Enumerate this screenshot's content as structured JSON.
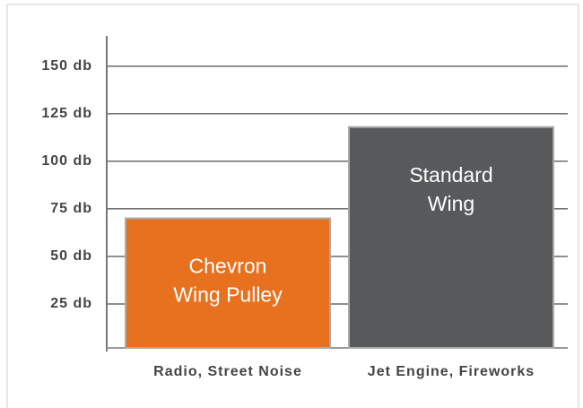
{
  "chart_data": {
    "type": "bar",
    "categories": [
      "Radio, Street Noise",
      "Jet Engine, Fireworks"
    ],
    "values": [
      70,
      118
    ],
    "bar_labels": [
      [
        "Chevron",
        "Wing Pulley"
      ],
      [
        "Standard",
        "Wing"
      ]
    ],
    "colors": [
      "#e8711f",
      "#58595b"
    ],
    "ylim": [
      0,
      165
    ],
    "yticks": [
      {
        "value": 25,
        "label": "25 db"
      },
      {
        "value": 50,
        "label": "50 db"
      },
      {
        "value": 75,
        "label": "75 db"
      },
      {
        "value": 100,
        "label": "100 db"
      },
      {
        "value": 125,
        "label": "125 db"
      },
      {
        "value": 150,
        "label": "150 db"
      }
    ],
    "grid": true
  }
}
